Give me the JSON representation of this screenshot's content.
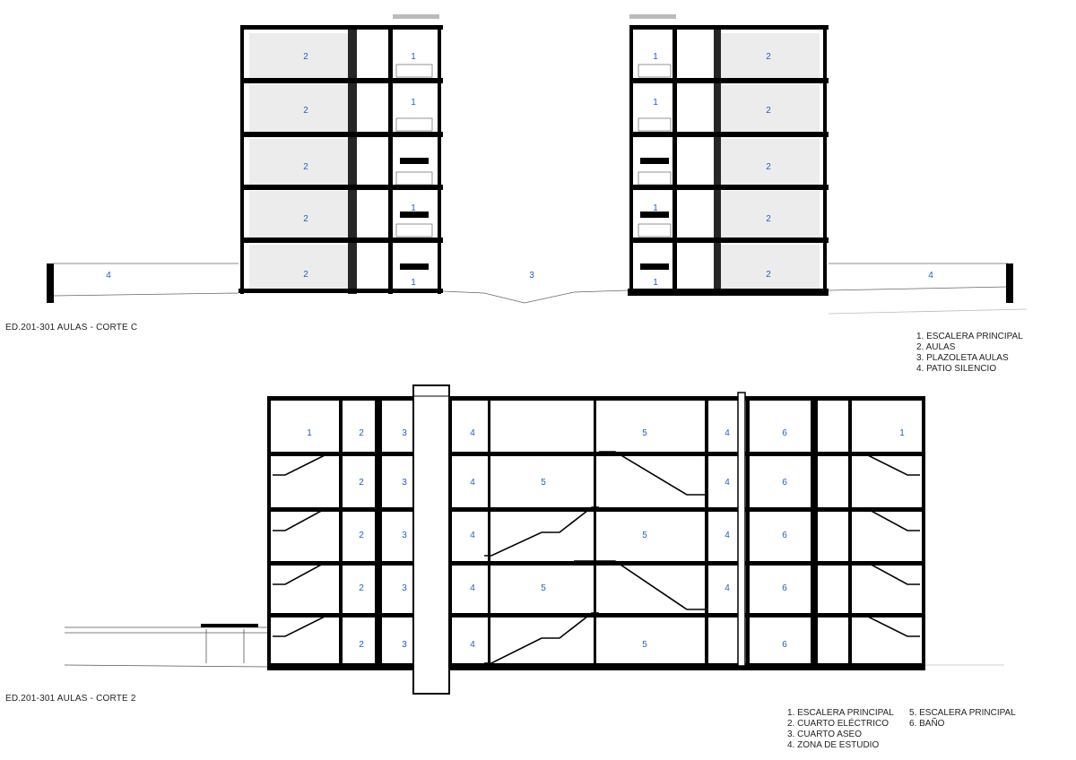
{
  "section_c": {
    "caption": "ED.201-301 AULAS - CORTE C",
    "legend": [
      "1. ESCALERA PRINCIPAL",
      "2. AULAS",
      "3. PLAZOLETA AULAS",
      "4. PATIO SILENCIO"
    ]
  },
  "section_2": {
    "caption": "ED.201-301 AULAS - CORTE 2",
    "legend_col1": [
      "1. ESCALERA PRINCIPAL",
      "2. CUARTO ELÉCTRICO",
      "3. CUARTO ASEO",
      "4. ZONA DE ESTUDIO"
    ],
    "legend_col2": [
      "5. ESCALERA PRINCIPAL",
      "6. BAÑO"
    ]
  },
  "room_numbers": [
    "1",
    "2",
    "3",
    "4",
    "5",
    "6"
  ],
  "colors": {
    "room_number": "#1f5fc8",
    "section_cut": "#000000",
    "room_fill": "#ececec"
  }
}
